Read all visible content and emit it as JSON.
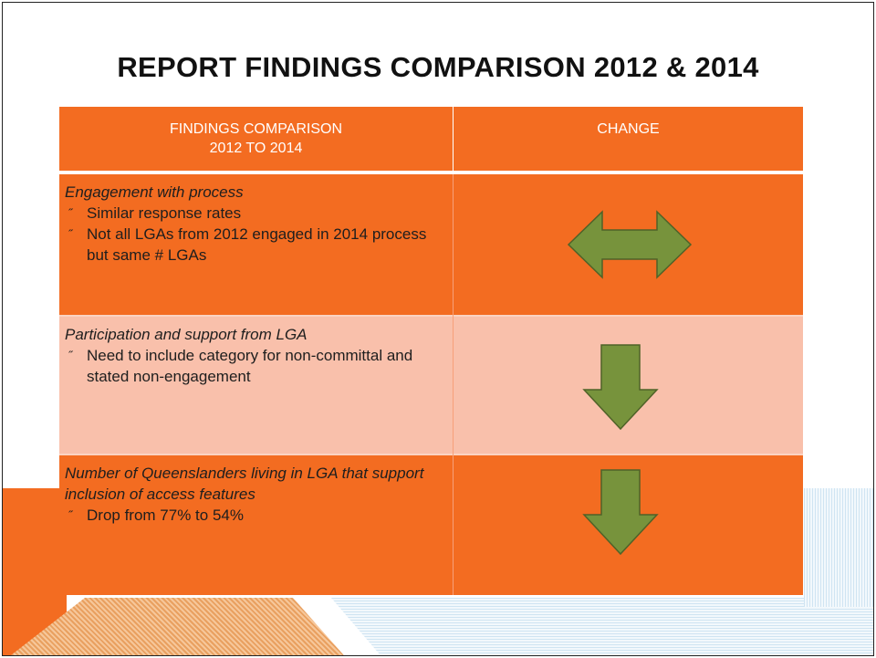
{
  "title": "REPORT FINDINGS COMPARISON 2012 & 2014",
  "bullet_marker": "˝",
  "table": {
    "header": [
      "FINDINGS COMPARISON\n2012 TO 2014",
      "CHANGE"
    ],
    "rows": [
      {
        "heading": "Engagement with process",
        "bullets": [
          "Similar response rates",
          "Not all LGAs from 2012 engaged in 2014 process but same # LGAs"
        ]
      },
      {
        "heading": "Participation and support from LGA",
        "bullets": [
          "Need to include category for non-committal and stated non-engagement"
        ]
      },
      {
        "heading": "Number of Queenslanders living in LGA that support inclusion of access features",
        "bullets": [
          "Drop from 77% to 54%"
        ]
      }
    ]
  }
}
